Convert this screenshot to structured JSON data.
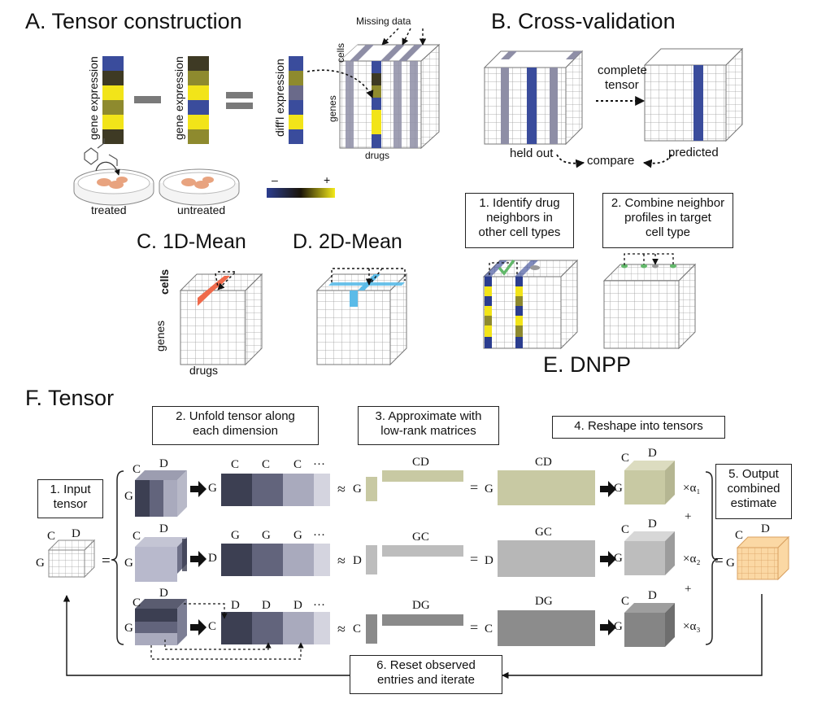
{
  "panels": {
    "a": {
      "title": "A. Tensor construction",
      "label_gene1": "gene expression",
      "label_gene2": "gene expression",
      "label_diff": "diff'l expression",
      "label_cells": "cells",
      "label_genes": "genes",
      "label_drugs": "drugs",
      "label_missing": "Missing data",
      "label_treated": "treated",
      "label_untreated": "untreated",
      "scale_minus": "–",
      "scale_plus": "+"
    },
    "b": {
      "title": "B. Cross-validation",
      "arrow_label_1": "complete",
      "arrow_label_2": "tensor",
      "held_out": "held out",
      "predicted": "predicted",
      "compare": "compare"
    },
    "c": {
      "title": "C. 1D-Mean",
      "label_cells": "cells",
      "label_genes": "genes",
      "label_drugs": "drugs"
    },
    "d": {
      "title": "D. 2D-Mean"
    },
    "e": {
      "title": "E. DNPP",
      "step1": [
        "1.  Identify drug",
        "neighbors in",
        "other cell types"
      ],
      "step2": [
        "2. Combine neighbor",
        "profiles in target",
        "cell type"
      ]
    },
    "f": {
      "title": "F. Tensor",
      "step1": [
        "1. Input",
        "tensor"
      ],
      "step2": [
        "2. Unfold tensor along",
        "each dimension"
      ],
      "step3": [
        "3. Approximate with",
        "low-rank matrices"
      ],
      "step4": [
        "4. Reshape into tensors"
      ],
      "step5": [
        "5. Output",
        "combined",
        "estimate"
      ],
      "step6": [
        "6. Reset observed",
        "entries and iterate"
      ],
      "rows": [
        {
          "mode": "G",
          "unfold": [
            "C",
            "C",
            "C",
            "···"
          ],
          "lowrank_top": "CD",
          "product": "CD",
          "alpha": "×α₁"
        },
        {
          "mode": "D",
          "unfold": [
            "G",
            "G",
            "G",
            "···"
          ],
          "lowrank_top": "GC",
          "product": "GC",
          "alpha": "×α₂"
        },
        {
          "mode": "C",
          "unfold": [
            "D",
            "D",
            "D",
            "···"
          ],
          "lowrank_top": "DG",
          "product": "DG",
          "alpha": "×α₃"
        }
      ],
      "sym_C": "C",
      "sym_D": "D",
      "sym_G": "G",
      "approx": "≈",
      "equals": "=",
      "plus": "+"
    }
  },
  "colors": {
    "blue": "#3a4c9c",
    "yellow": "#f2e419",
    "olive": "#8e8a2e",
    "dark": "#3e3a24",
    "grey": "#8e8ea6",
    "orange": "#ef6a4b",
    "cyan": "#5bbbe8",
    "green": "#62b86a",
    "sage": "#c8c9a3",
    "lgrey": "#b5b5b5",
    "mgrey": "#8c8c8c",
    "peach": "#fbd8a4"
  }
}
